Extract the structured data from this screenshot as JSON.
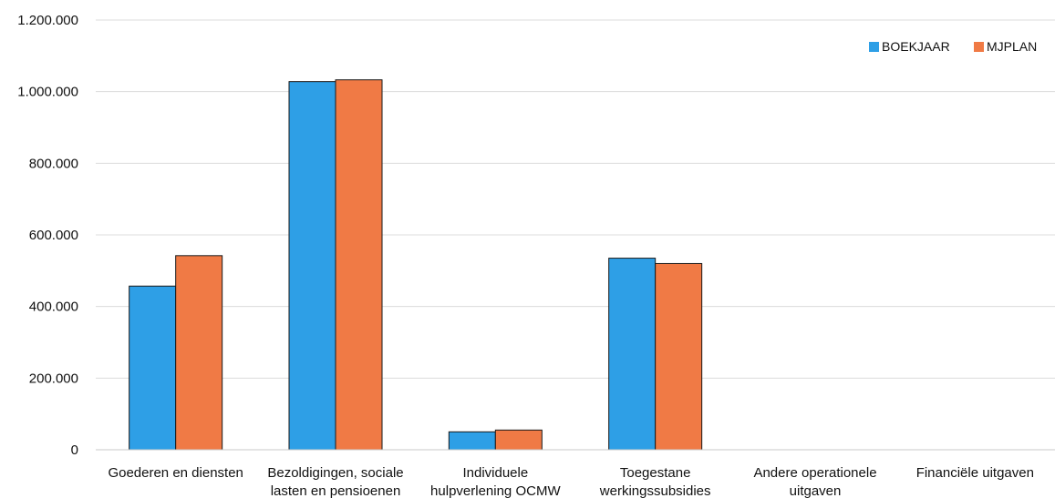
{
  "chart_data": {
    "type": "bar",
    "categories": [
      [
        "Goederen en diensten"
      ],
      [
        "Bezoldigingen, sociale",
        "lasten en pensioenen"
      ],
      [
        "Individuele",
        "hulpverlening OCMW"
      ],
      [
        "Toegestane",
        "werkingssubsidies"
      ],
      [
        "Andere operationele",
        "uitgaven"
      ],
      [
        "Financiële uitgaven"
      ]
    ],
    "series": [
      {
        "name": "BOEKJAAR",
        "color": "#2e9fe6",
        "values": [
          457000,
          1028000,
          50000,
          535000,
          0,
          0
        ]
      },
      {
        "name": "MJPLAN",
        "color": "#f07a45",
        "values": [
          542000,
          1033000,
          55000,
          520000,
          0,
          0
        ]
      }
    ],
    "yticks": [
      "0",
      "200.000",
      "400.000",
      "600.000",
      "800.000",
      "1.000.000",
      "1.200.000"
    ],
    "ylim": [
      0,
      1200000
    ],
    "grid": true,
    "legend_position": "top-right"
  }
}
